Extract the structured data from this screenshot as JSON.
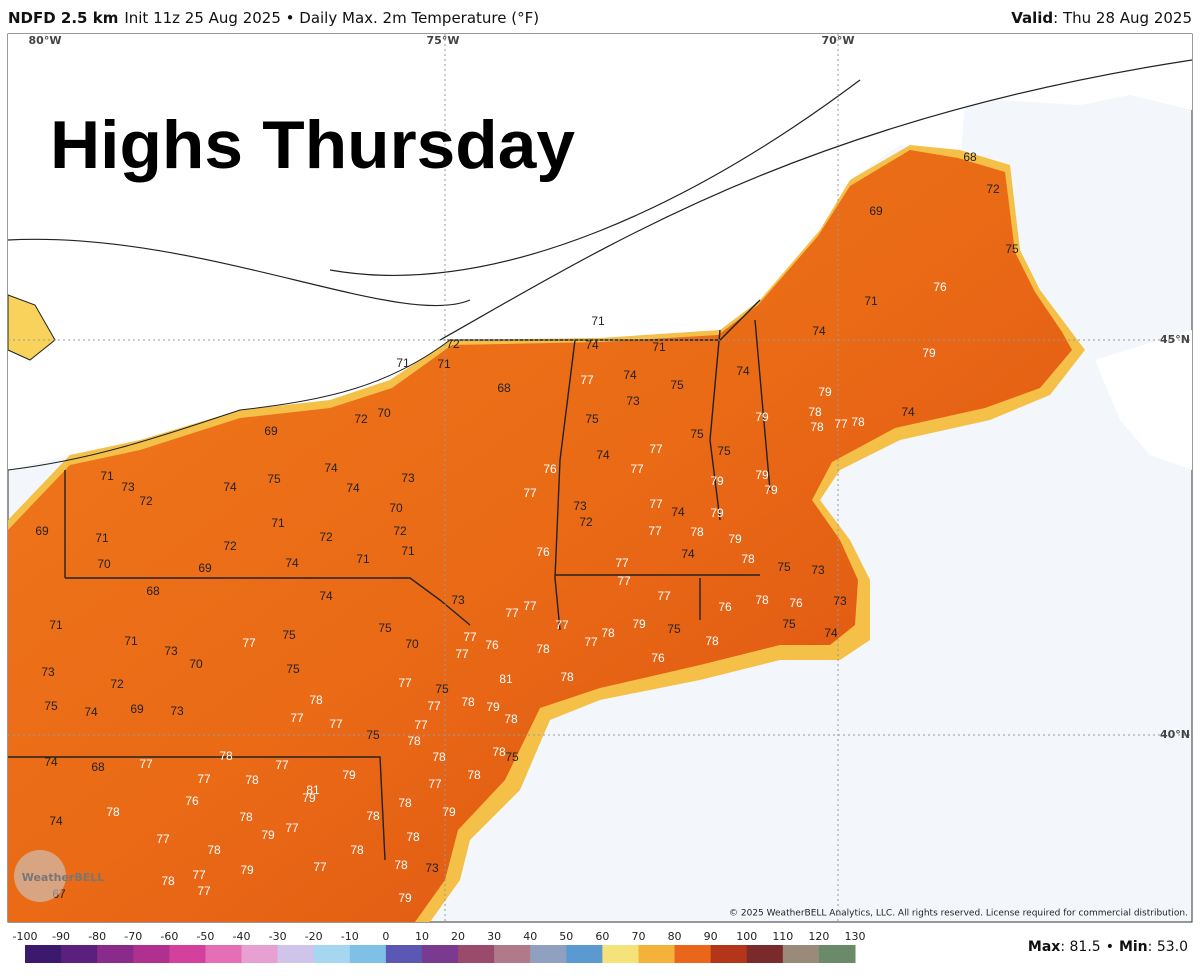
{
  "header": {
    "model": "NDFD 2.5 km",
    "info": "Init 11z 25 Aug 2025 • Daily Max. 2m Temperature (°F)",
    "valid_label": "Valid",
    "valid_date": ": Thu 28 Aug 2025"
  },
  "map": {
    "title": "Highs Thursday",
    "lon_labels": [
      "80°W",
      "75°W",
      "70°W"
    ],
    "lat_labels": [
      "45°N",
      "40°N"
    ],
    "logo": "WeatherBELL",
    "copyright": "© 2025 WeatherBELL Analytics, LLC. All rights reserved. License required for commercial distribution.",
    "temperatures": [
      68,
      72,
      69,
      75,
      76,
      71,
      74,
      79,
      71,
      74,
      71,
      72,
      71,
      71,
      68,
      77,
      74,
      75,
      74,
      73,
      75,
      79,
      79,
      78,
      78,
      77,
      78,
      74,
      70,
      72,
      69,
      75,
      77,
      74,
      75,
      77,
      76,
      79,
      79,
      74,
      73,
      71,
      73,
      72,
      74,
      75,
      74,
      70,
      77,
      73,
      79,
      79,
      77,
      74,
      72,
      69,
      71,
      71,
      72,
      72,
      77,
      78,
      79,
      76,
      74,
      78,
      71,
      70,
      72,
      69,
      74,
      71,
      77,
      75,
      73,
      77,
      68,
      74,
      73,
      77,
      76,
      78,
      76,
      73,
      71,
      71,
      73,
      77,
      75,
      75,
      70,
      77,
      77,
      77,
      78,
      79,
      75,
      78,
      75,
      74,
      77,
      76,
      77,
      78,
      76,
      73,
      70,
      75,
      77,
      72,
      77,
      75,
      81,
      78,
      75,
      74,
      69,
      73,
      78,
      77,
      78,
      79,
      77,
      77,
      77,
      78,
      75,
      78,
      78,
      75,
      78,
      77,
      78,
      74,
      68,
      77,
      77,
      78,
      79,
      78,
      77,
      81,
      79,
      76,
      78,
      79,
      78,
      74,
      78,
      78,
      79,
      77,
      77,
      78,
      78,
      78,
      77,
      79,
      78,
      73,
      78,
      77,
      77,
      79,
      67
    ]
  },
  "colorbar": {
    "ticks": [
      -100,
      -90,
      -80,
      -70,
      -60,
      -50,
      -40,
      -30,
      -20,
      -10,
      0,
      10,
      20,
      30,
      40,
      50,
      60,
      70,
      80,
      90,
      100,
      110,
      120,
      130
    ]
  },
  "stats": {
    "max_label": "Max",
    "max": ": 81.5",
    "sep": "•",
    "min_label": "Min",
    "min": ": 53.0"
  }
}
